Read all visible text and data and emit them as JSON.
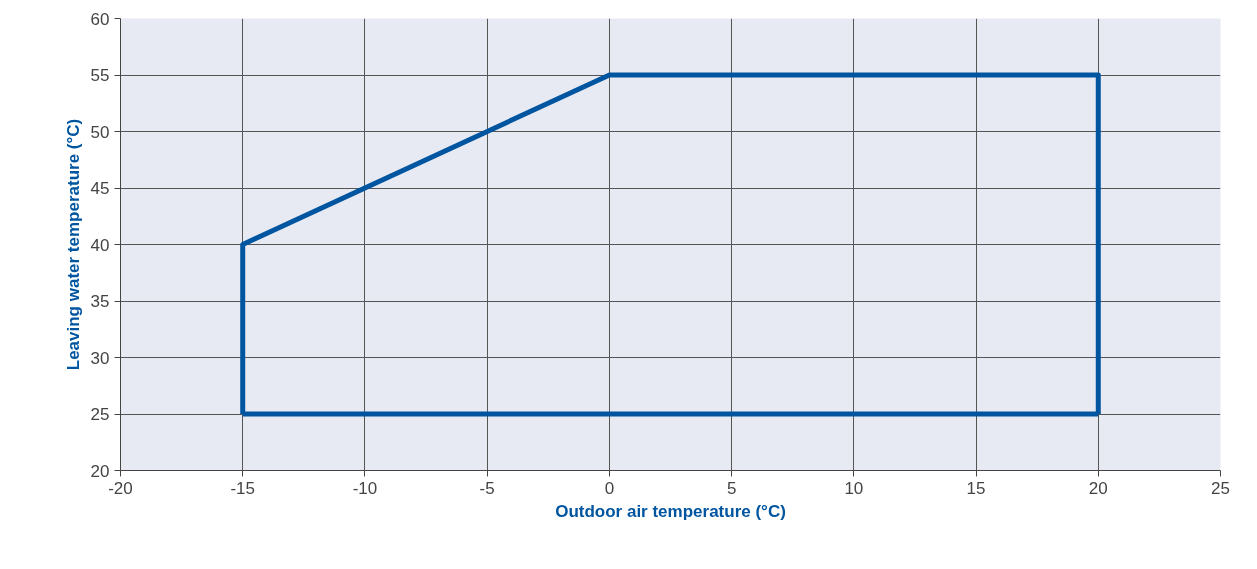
{
  "chart_data": {
    "type": "line",
    "xlabel": "Outdoor air temperature (°C)",
    "ylabel": "Leaving water temperature (°C)",
    "series": [
      {
        "color": "#0055a0",
        "x": [
          -15,
          -15,
          0,
          20,
          20
        ],
        "values": [
          25,
          40,
          55,
          55,
          25
        ]
      },
      {
        "color": "#0055a0",
        "x": [
          -15,
          20
        ],
        "values": [
          25,
          25
        ]
      }
    ],
    "xlim": [
      -20,
      25
    ],
    "ylim": [
      20,
      60
    ],
    "xticks": [
      -20,
      -15,
      -10,
      -5,
      0,
      5,
      10,
      15,
      20,
      25
    ],
    "yticks": [
      20,
      25,
      30,
      35,
      40,
      45,
      50,
      55,
      60
    ],
    "grid": true,
    "marker": "none",
    "line_style": "solid"
  }
}
